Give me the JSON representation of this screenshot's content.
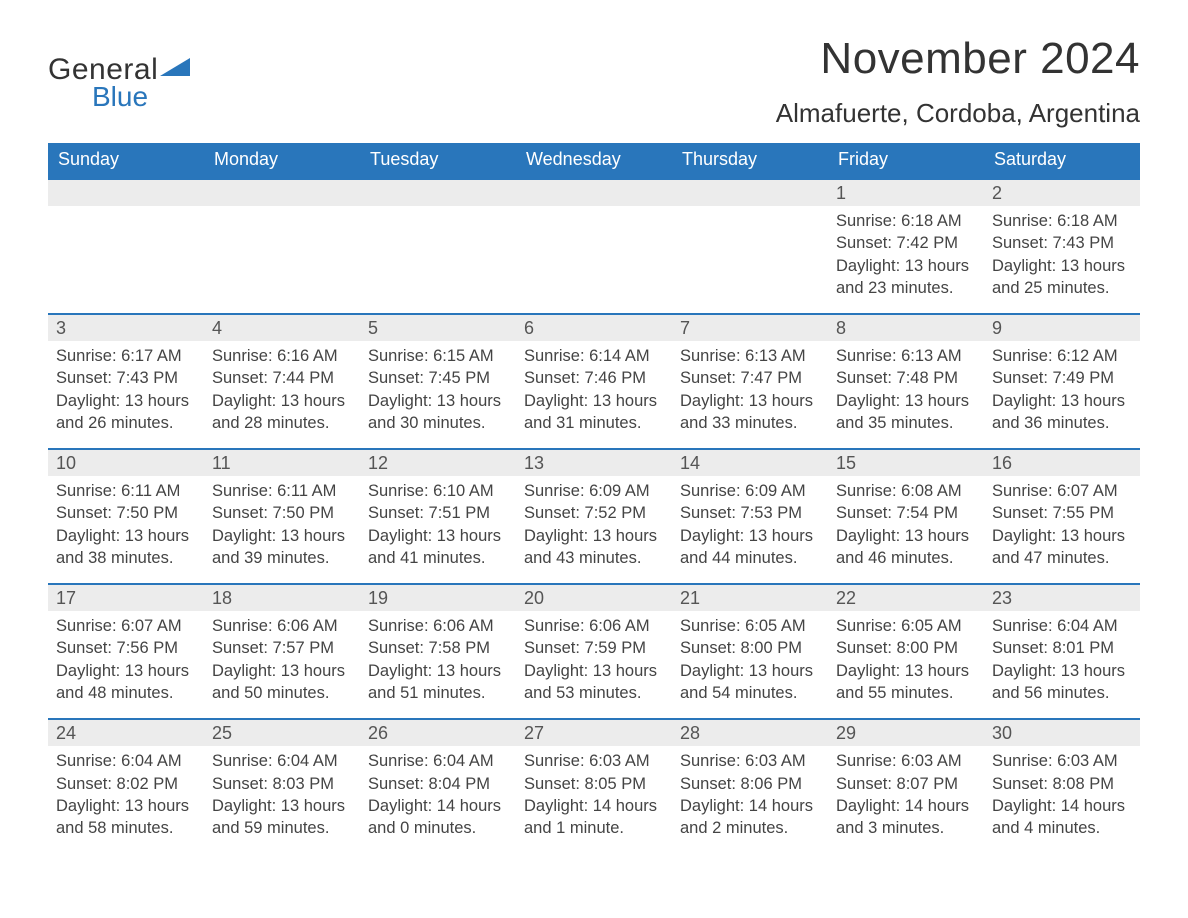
{
  "brand": {
    "word1": "General",
    "word2": "Blue"
  },
  "title": "November 2024",
  "location": "Almafuerte, Cordoba, Argentina",
  "colors": {
    "brand_blue": "#2976bb",
    "date_strip_bg": "#ececec",
    "text": "#333333",
    "background": "#ffffff"
  },
  "typography": {
    "title_fontsize": 44,
    "subtitle_fontsize": 26,
    "weekday_fontsize": 18,
    "body_fontsize": 16.5
  },
  "labels": {
    "sunrise": "Sunrise",
    "sunset": "Sunset",
    "daylight": "Daylight"
  },
  "weekdays": [
    "Sunday",
    "Monday",
    "Tuesday",
    "Wednesday",
    "Thursday",
    "Friday",
    "Saturday"
  ],
  "weeks": [
    [
      null,
      null,
      null,
      null,
      null,
      {
        "date": 1,
        "sunrise": "6:18 AM",
        "sunset": "7:42 PM",
        "daylight": "13 hours and 23 minutes."
      },
      {
        "date": 2,
        "sunrise": "6:18 AM",
        "sunset": "7:43 PM",
        "daylight": "13 hours and 25 minutes."
      }
    ],
    [
      {
        "date": 3,
        "sunrise": "6:17 AM",
        "sunset": "7:43 PM",
        "daylight": "13 hours and 26 minutes."
      },
      {
        "date": 4,
        "sunrise": "6:16 AM",
        "sunset": "7:44 PM",
        "daylight": "13 hours and 28 minutes."
      },
      {
        "date": 5,
        "sunrise": "6:15 AM",
        "sunset": "7:45 PM",
        "daylight": "13 hours and 30 minutes."
      },
      {
        "date": 6,
        "sunrise": "6:14 AM",
        "sunset": "7:46 PM",
        "daylight": "13 hours and 31 minutes."
      },
      {
        "date": 7,
        "sunrise": "6:13 AM",
        "sunset": "7:47 PM",
        "daylight": "13 hours and 33 minutes."
      },
      {
        "date": 8,
        "sunrise": "6:13 AM",
        "sunset": "7:48 PM",
        "daylight": "13 hours and 35 minutes."
      },
      {
        "date": 9,
        "sunrise": "6:12 AM",
        "sunset": "7:49 PM",
        "daylight": "13 hours and 36 minutes."
      }
    ],
    [
      {
        "date": 10,
        "sunrise": "6:11 AM",
        "sunset": "7:50 PM",
        "daylight": "13 hours and 38 minutes."
      },
      {
        "date": 11,
        "sunrise": "6:11 AM",
        "sunset": "7:50 PM",
        "daylight": "13 hours and 39 minutes."
      },
      {
        "date": 12,
        "sunrise": "6:10 AM",
        "sunset": "7:51 PM",
        "daylight": "13 hours and 41 minutes."
      },
      {
        "date": 13,
        "sunrise": "6:09 AM",
        "sunset": "7:52 PM",
        "daylight": "13 hours and 43 minutes."
      },
      {
        "date": 14,
        "sunrise": "6:09 AM",
        "sunset": "7:53 PM",
        "daylight": "13 hours and 44 minutes."
      },
      {
        "date": 15,
        "sunrise": "6:08 AM",
        "sunset": "7:54 PM",
        "daylight": "13 hours and 46 minutes."
      },
      {
        "date": 16,
        "sunrise": "6:07 AM",
        "sunset": "7:55 PM",
        "daylight": "13 hours and 47 minutes."
      }
    ],
    [
      {
        "date": 17,
        "sunrise": "6:07 AM",
        "sunset": "7:56 PM",
        "daylight": "13 hours and 48 minutes."
      },
      {
        "date": 18,
        "sunrise": "6:06 AM",
        "sunset": "7:57 PM",
        "daylight": "13 hours and 50 minutes."
      },
      {
        "date": 19,
        "sunrise": "6:06 AM",
        "sunset": "7:58 PM",
        "daylight": "13 hours and 51 minutes."
      },
      {
        "date": 20,
        "sunrise": "6:06 AM",
        "sunset": "7:59 PM",
        "daylight": "13 hours and 53 minutes."
      },
      {
        "date": 21,
        "sunrise": "6:05 AM",
        "sunset": "8:00 PM",
        "daylight": "13 hours and 54 minutes."
      },
      {
        "date": 22,
        "sunrise": "6:05 AM",
        "sunset": "8:00 PM",
        "daylight": "13 hours and 55 minutes."
      },
      {
        "date": 23,
        "sunrise": "6:04 AM",
        "sunset": "8:01 PM",
        "daylight": "13 hours and 56 minutes."
      }
    ],
    [
      {
        "date": 24,
        "sunrise": "6:04 AM",
        "sunset": "8:02 PM",
        "daylight": "13 hours and 58 minutes."
      },
      {
        "date": 25,
        "sunrise": "6:04 AM",
        "sunset": "8:03 PM",
        "daylight": "13 hours and 59 minutes."
      },
      {
        "date": 26,
        "sunrise": "6:04 AM",
        "sunset": "8:04 PM",
        "daylight": "14 hours and 0 minutes."
      },
      {
        "date": 27,
        "sunrise": "6:03 AM",
        "sunset": "8:05 PM",
        "daylight": "14 hours and 1 minute."
      },
      {
        "date": 28,
        "sunrise": "6:03 AM",
        "sunset": "8:06 PM",
        "daylight": "14 hours and 2 minutes."
      },
      {
        "date": 29,
        "sunrise": "6:03 AM",
        "sunset": "8:07 PM",
        "daylight": "14 hours and 3 minutes."
      },
      {
        "date": 30,
        "sunrise": "6:03 AM",
        "sunset": "8:08 PM",
        "daylight": "14 hours and 4 minutes."
      }
    ]
  ]
}
